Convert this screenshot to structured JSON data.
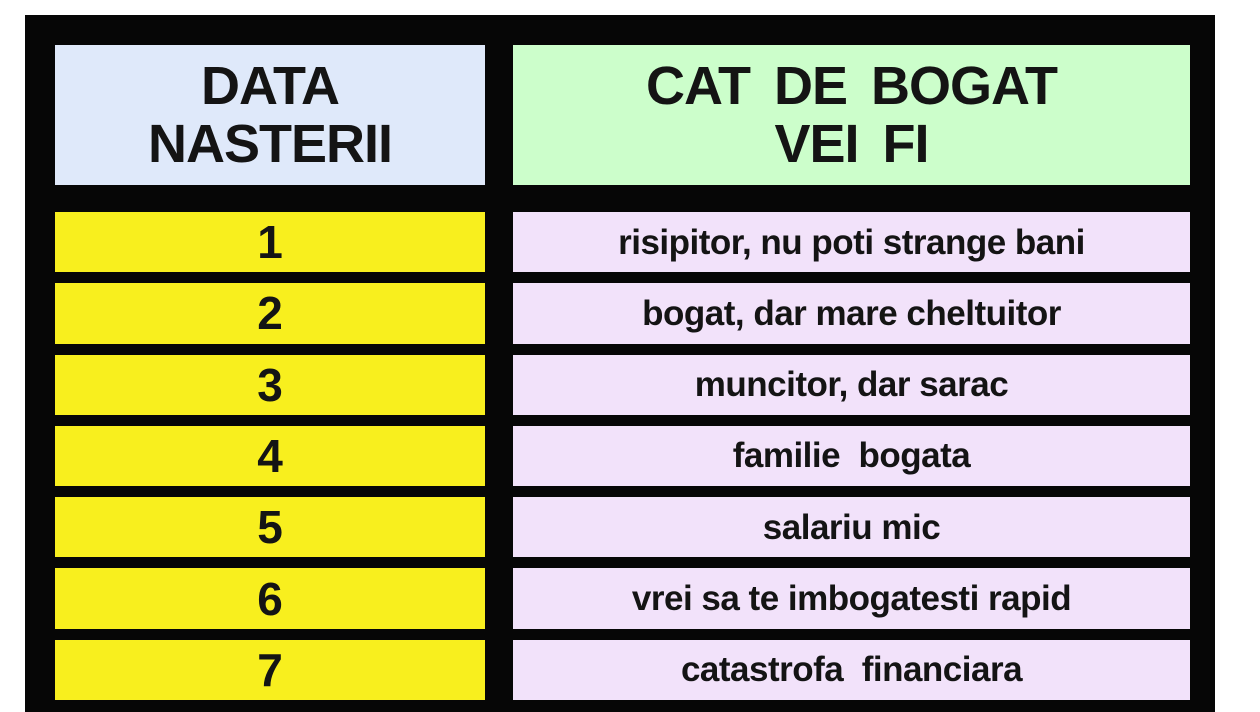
{
  "table": {
    "header": {
      "col1": {
        "line1": "DATA",
        "line2": "NASTERII"
      },
      "col2": {
        "line1": "CAT DE BOGAT",
        "line2": "VEI FI"
      }
    },
    "rows": [
      {
        "number": "1",
        "description": "risipitor, nu poti strange bani"
      },
      {
        "number": "2",
        "description": "bogat, dar mare cheltuitor"
      },
      {
        "number": "3",
        "description": "muncitor, dar sarac"
      },
      {
        "number": "4",
        "description": "familie  bogata"
      },
      {
        "number": "5",
        "description": "salariu mic"
      },
      {
        "number": "6",
        "description": "vrei sa te imbogatesti rapid"
      },
      {
        "number": "7",
        "description": "catastrofa  financiara"
      }
    ]
  },
  "colors": {
    "frame_border": "#060606",
    "header_left_bg": "#dfe9fa",
    "header_right_bg": "#ccfecb",
    "number_cell_bg": "#f8ef1e",
    "description_cell_bg": "#f2e2fa",
    "text": "#141414",
    "page_bg": "#ffffff"
  },
  "chart_data": {
    "type": "table",
    "title": "",
    "columns": [
      "DATA NASTERII",
      "CAT DE BOGAT VEI FI"
    ],
    "rows": [
      [
        "1",
        "risipitor, nu poti strange bani"
      ],
      [
        "2",
        "bogat, dar mare cheltuitor"
      ],
      [
        "3",
        "muncitor, dar sarac"
      ],
      [
        "4",
        "familie bogata"
      ],
      [
        "5",
        "salariu mic"
      ],
      [
        "6",
        "vrei sa te imbogatesti rapid"
      ],
      [
        "7",
        "catastrofa financiara"
      ]
    ]
  }
}
